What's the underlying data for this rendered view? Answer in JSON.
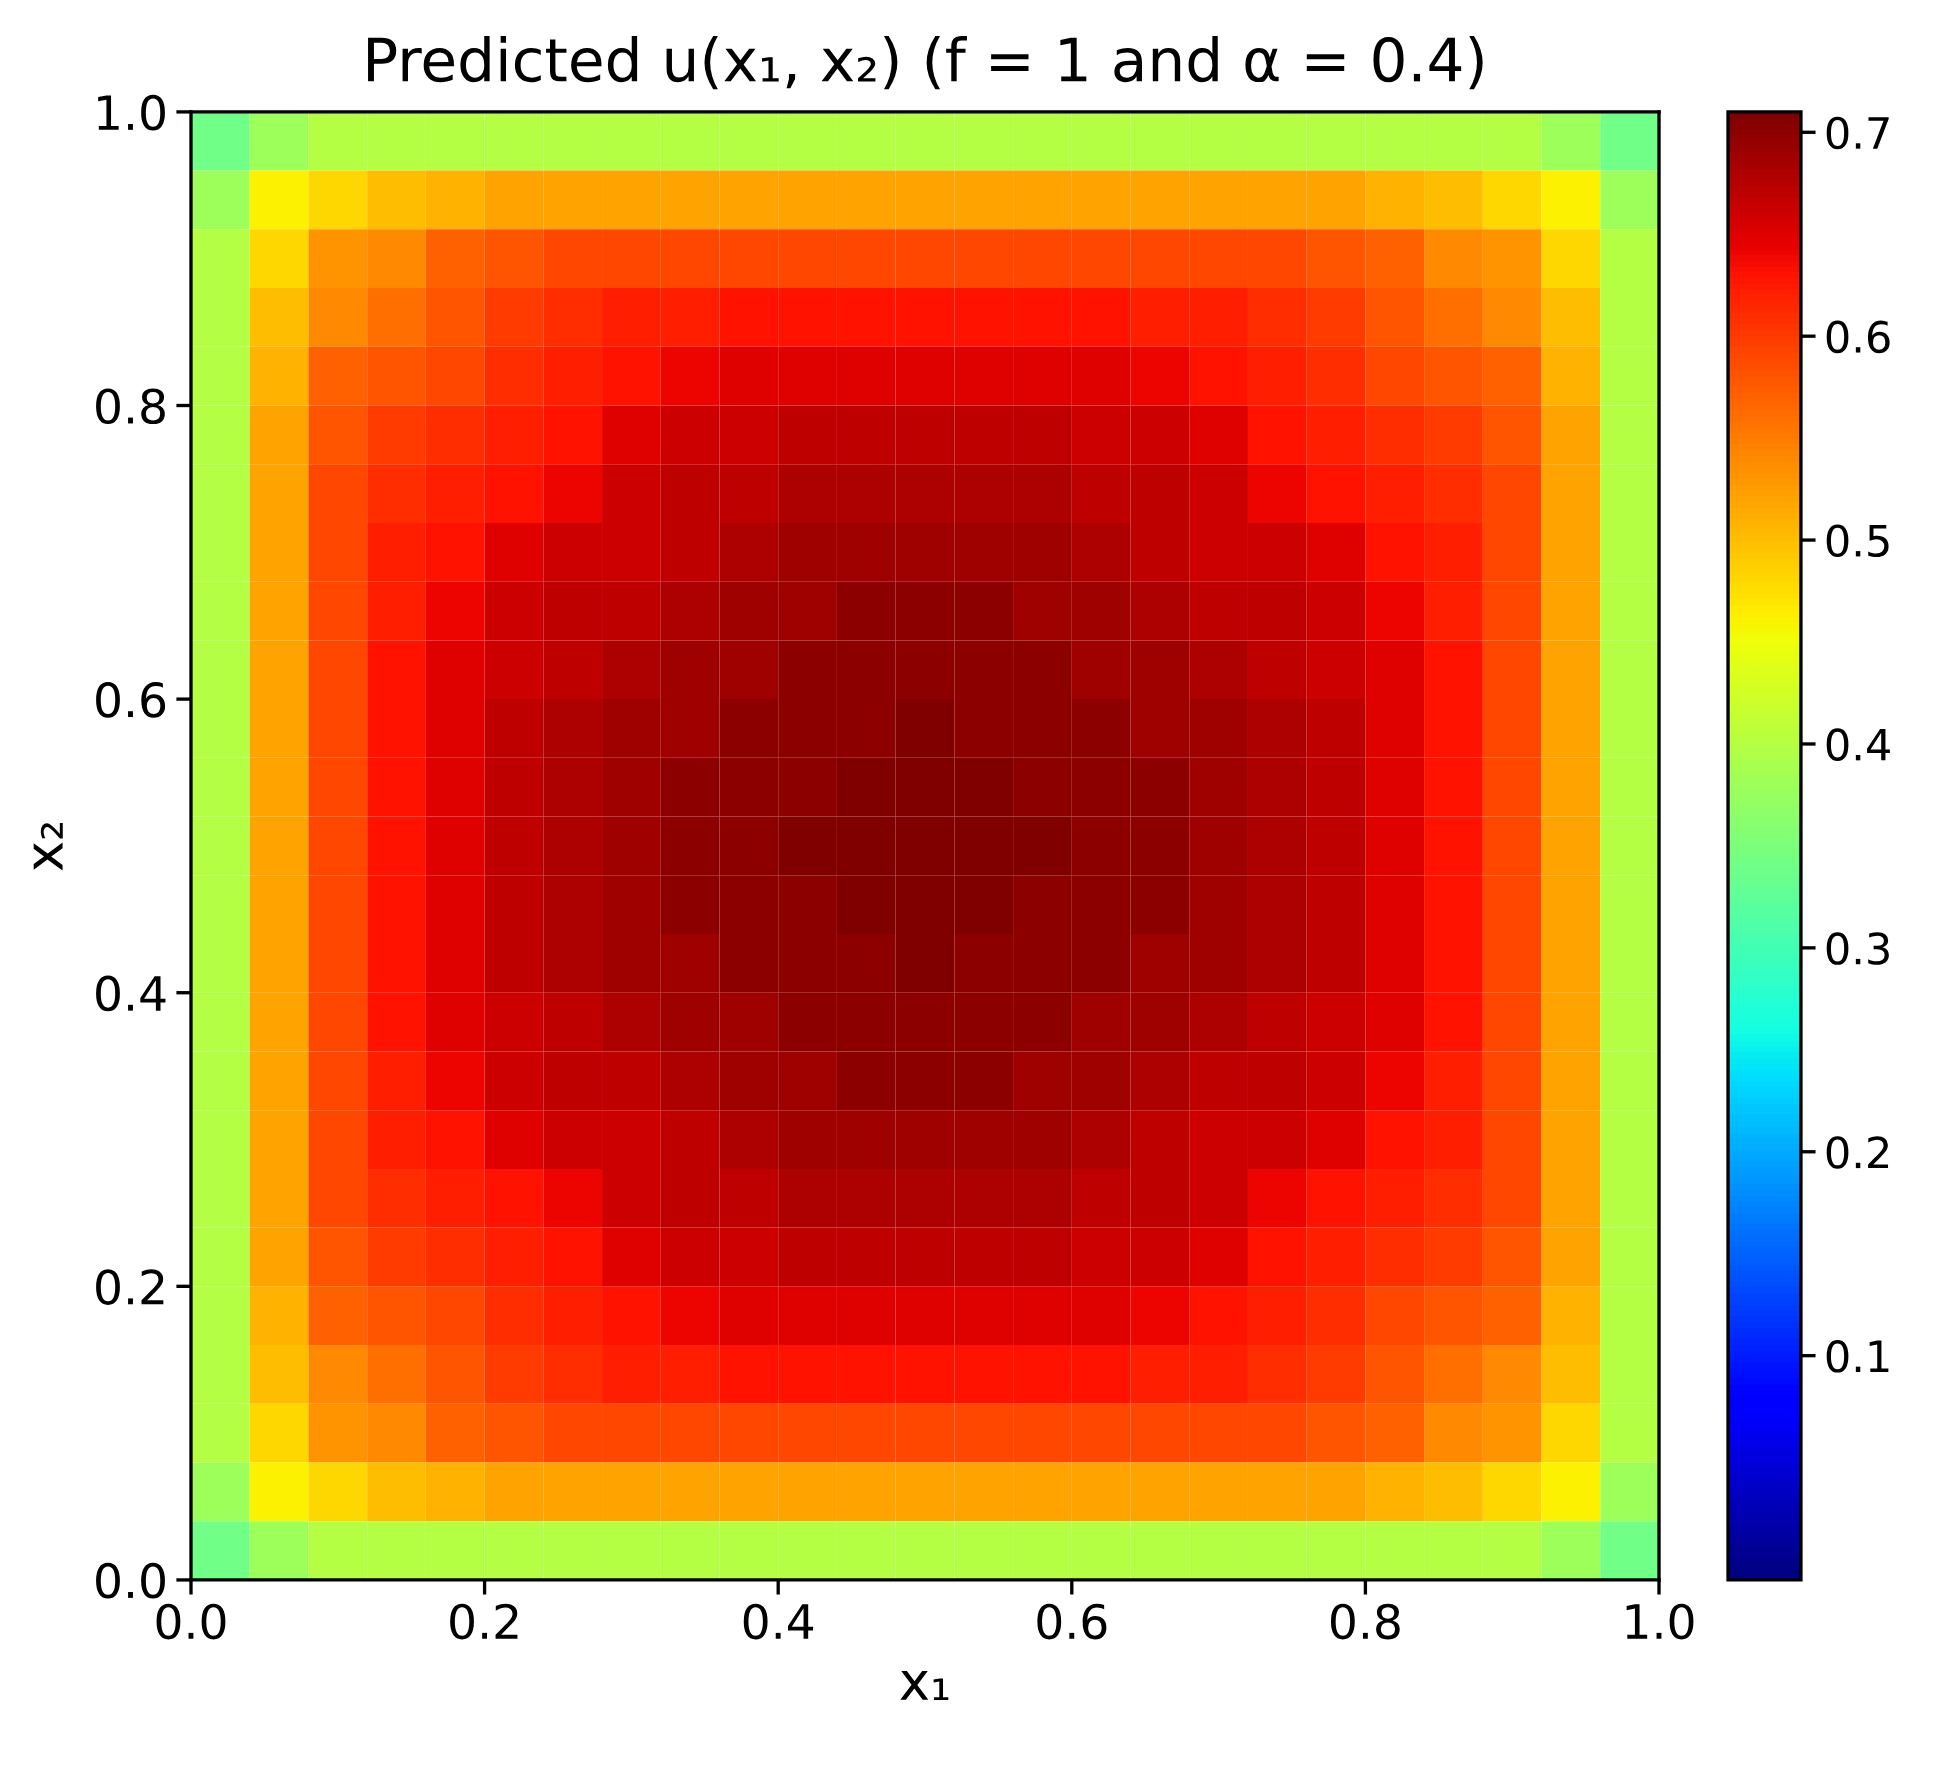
{
  "chart_data": {
    "type": "heatmap",
    "title": "Predicted u(x₁, x₂) (f = 1 and α = 0.4)",
    "xlabel": "x₁",
    "ylabel": "x₂",
    "x": [
      0.02,
      0.06,
      0.1,
      0.14,
      0.18,
      0.22,
      0.26,
      0.3,
      0.34,
      0.38,
      0.42,
      0.46,
      0.5,
      0.54,
      0.58,
      0.62,
      0.66,
      0.7,
      0.74,
      0.78,
      0.82,
      0.86,
      0.9,
      0.94,
      0.98
    ],
    "y": [
      0.98,
      0.94,
      0.9,
      0.86,
      0.82,
      0.78,
      0.74,
      0.7,
      0.66,
      0.62,
      0.58,
      0.54,
      0.5,
      0.46,
      0.42,
      0.38,
      0.34,
      0.3,
      0.26,
      0.22,
      0.18,
      0.14,
      0.1,
      0.06,
      0.02
    ],
    "xlim": [
      0,
      1
    ],
    "ylim": [
      0,
      1
    ],
    "xticks": [
      {
        "value": 0,
        "label": "0.0"
      },
      0.2,
      0.4,
      0.6,
      0.8,
      {
        "value": 1,
        "label": "1.0"
      }
    ],
    "yticks": [
      {
        "value": 0,
        "label": "0.0"
      },
      0.2,
      0.4,
      0.6,
      0.8,
      {
        "value": 1,
        "label": "1.0"
      }
    ],
    "clim": [
      -0.01,
      0.71
    ],
    "cticks": [
      0.1,
      0.2,
      0.3,
      0.4,
      0.5,
      0.6,
      0.7
    ],
    "cells": [
      [
        0.34,
        0.38,
        0.4,
        0.4,
        0.4,
        0.4,
        0.4,
        0.4,
        0.4,
        0.4,
        0.4,
        0.4,
        0.4,
        0.4,
        0.4,
        0.4,
        0.4,
        0.4,
        0.4,
        0.4,
        0.4,
        0.4,
        0.4,
        0.38,
        0.34
      ],
      [
        0.38,
        0.46,
        0.48,
        0.5,
        0.51,
        0.52,
        0.52,
        0.52,
        0.52,
        0.52,
        0.52,
        0.52,
        0.52,
        0.52,
        0.52,
        0.52,
        0.52,
        0.52,
        0.52,
        0.52,
        0.51,
        0.5,
        0.48,
        0.46,
        0.38
      ],
      [
        0.4,
        0.48,
        0.53,
        0.54,
        0.57,
        0.58,
        0.59,
        0.59,
        0.59,
        0.59,
        0.59,
        0.59,
        0.59,
        0.59,
        0.59,
        0.59,
        0.59,
        0.59,
        0.59,
        0.58,
        0.57,
        0.54,
        0.53,
        0.48,
        0.4
      ],
      [
        0.4,
        0.5,
        0.54,
        0.56,
        0.58,
        0.6,
        0.61,
        0.62,
        0.62,
        0.63,
        0.63,
        0.63,
        0.63,
        0.63,
        0.63,
        0.63,
        0.62,
        0.62,
        0.61,
        0.6,
        0.58,
        0.56,
        0.54,
        0.5,
        0.4
      ],
      [
        0.4,
        0.51,
        0.57,
        0.58,
        0.59,
        0.61,
        0.62,
        0.63,
        0.64,
        0.65,
        0.65,
        0.65,
        0.65,
        0.65,
        0.65,
        0.65,
        0.64,
        0.63,
        0.62,
        0.61,
        0.59,
        0.58,
        0.57,
        0.51,
        0.4
      ],
      [
        0.4,
        0.52,
        0.58,
        0.6,
        0.61,
        0.62,
        0.63,
        0.65,
        0.66,
        0.66,
        0.67,
        0.67,
        0.67,
        0.67,
        0.67,
        0.66,
        0.66,
        0.65,
        0.63,
        0.62,
        0.61,
        0.6,
        0.58,
        0.52,
        0.4
      ],
      [
        0.4,
        0.52,
        0.59,
        0.61,
        0.62,
        0.63,
        0.64,
        0.66,
        0.67,
        0.67,
        0.68,
        0.68,
        0.68,
        0.68,
        0.68,
        0.67,
        0.67,
        0.66,
        0.64,
        0.63,
        0.62,
        0.61,
        0.59,
        0.52,
        0.4
      ],
      [
        0.4,
        0.52,
        0.59,
        0.62,
        0.63,
        0.65,
        0.66,
        0.66,
        0.67,
        0.68,
        0.69,
        0.69,
        0.69,
        0.69,
        0.69,
        0.68,
        0.67,
        0.66,
        0.66,
        0.65,
        0.63,
        0.62,
        0.59,
        0.52,
        0.4
      ],
      [
        0.4,
        0.52,
        0.59,
        0.62,
        0.64,
        0.66,
        0.67,
        0.67,
        0.68,
        0.69,
        0.69,
        0.7,
        0.7,
        0.7,
        0.69,
        0.69,
        0.68,
        0.67,
        0.67,
        0.66,
        0.64,
        0.62,
        0.59,
        0.52,
        0.4
      ],
      [
        0.4,
        0.52,
        0.59,
        0.63,
        0.65,
        0.66,
        0.67,
        0.68,
        0.69,
        0.69,
        0.7,
        0.7,
        0.7,
        0.7,
        0.7,
        0.69,
        0.69,
        0.68,
        0.67,
        0.66,
        0.65,
        0.63,
        0.59,
        0.52,
        0.4
      ],
      [
        0.4,
        0.52,
        0.59,
        0.63,
        0.65,
        0.67,
        0.68,
        0.69,
        0.69,
        0.7,
        0.7,
        0.7,
        0.71,
        0.7,
        0.7,
        0.7,
        0.69,
        0.69,
        0.68,
        0.67,
        0.65,
        0.63,
        0.59,
        0.52,
        0.4
      ],
      [
        0.4,
        0.52,
        0.59,
        0.63,
        0.65,
        0.67,
        0.68,
        0.69,
        0.7,
        0.7,
        0.7,
        0.71,
        0.71,
        0.71,
        0.7,
        0.7,
        0.7,
        0.69,
        0.68,
        0.67,
        0.65,
        0.63,
        0.59,
        0.52,
        0.4
      ],
      [
        0.4,
        0.52,
        0.59,
        0.63,
        0.65,
        0.67,
        0.68,
        0.69,
        0.7,
        0.7,
        0.71,
        0.71,
        0.71,
        0.71,
        0.71,
        0.7,
        0.7,
        0.69,
        0.68,
        0.67,
        0.65,
        0.63,
        0.59,
        0.52,
        0.4
      ],
      [
        0.4,
        0.52,
        0.59,
        0.63,
        0.65,
        0.67,
        0.68,
        0.69,
        0.7,
        0.7,
        0.7,
        0.71,
        0.71,
        0.71,
        0.7,
        0.7,
        0.7,
        0.69,
        0.68,
        0.67,
        0.65,
        0.63,
        0.59,
        0.52,
        0.4
      ],
      [
        0.4,
        0.52,
        0.59,
        0.63,
        0.65,
        0.67,
        0.68,
        0.69,
        0.69,
        0.7,
        0.7,
        0.7,
        0.71,
        0.7,
        0.7,
        0.7,
        0.69,
        0.69,
        0.68,
        0.67,
        0.65,
        0.63,
        0.59,
        0.52,
        0.4
      ],
      [
        0.4,
        0.52,
        0.59,
        0.63,
        0.65,
        0.66,
        0.67,
        0.68,
        0.69,
        0.69,
        0.7,
        0.7,
        0.7,
        0.7,
        0.7,
        0.69,
        0.69,
        0.68,
        0.67,
        0.66,
        0.65,
        0.63,
        0.59,
        0.52,
        0.4
      ],
      [
        0.4,
        0.52,
        0.59,
        0.62,
        0.64,
        0.66,
        0.67,
        0.67,
        0.68,
        0.69,
        0.69,
        0.7,
        0.7,
        0.7,
        0.69,
        0.69,
        0.68,
        0.67,
        0.67,
        0.66,
        0.64,
        0.62,
        0.59,
        0.52,
        0.4
      ],
      [
        0.4,
        0.52,
        0.59,
        0.62,
        0.63,
        0.65,
        0.66,
        0.66,
        0.67,
        0.68,
        0.69,
        0.69,
        0.69,
        0.69,
        0.69,
        0.68,
        0.67,
        0.66,
        0.66,
        0.65,
        0.63,
        0.62,
        0.59,
        0.52,
        0.4
      ],
      [
        0.4,
        0.52,
        0.59,
        0.61,
        0.62,
        0.63,
        0.64,
        0.66,
        0.67,
        0.67,
        0.68,
        0.68,
        0.68,
        0.68,
        0.68,
        0.67,
        0.67,
        0.66,
        0.64,
        0.63,
        0.62,
        0.61,
        0.59,
        0.52,
        0.4
      ],
      [
        0.4,
        0.52,
        0.58,
        0.6,
        0.61,
        0.62,
        0.63,
        0.65,
        0.66,
        0.66,
        0.67,
        0.67,
        0.67,
        0.67,
        0.67,
        0.66,
        0.66,
        0.65,
        0.63,
        0.62,
        0.61,
        0.6,
        0.58,
        0.52,
        0.4
      ],
      [
        0.4,
        0.51,
        0.57,
        0.58,
        0.59,
        0.61,
        0.62,
        0.63,
        0.64,
        0.65,
        0.65,
        0.65,
        0.65,
        0.65,
        0.65,
        0.65,
        0.64,
        0.63,
        0.62,
        0.61,
        0.59,
        0.58,
        0.57,
        0.51,
        0.4
      ],
      [
        0.4,
        0.5,
        0.54,
        0.56,
        0.58,
        0.6,
        0.61,
        0.62,
        0.62,
        0.63,
        0.63,
        0.63,
        0.63,
        0.63,
        0.63,
        0.63,
        0.62,
        0.62,
        0.61,
        0.6,
        0.58,
        0.56,
        0.54,
        0.5,
        0.4
      ],
      [
        0.4,
        0.48,
        0.53,
        0.54,
        0.57,
        0.58,
        0.59,
        0.59,
        0.59,
        0.59,
        0.59,
        0.59,
        0.59,
        0.59,
        0.59,
        0.59,
        0.59,
        0.59,
        0.59,
        0.58,
        0.57,
        0.54,
        0.53,
        0.48,
        0.4
      ],
      [
        0.38,
        0.46,
        0.48,
        0.5,
        0.51,
        0.52,
        0.52,
        0.52,
        0.52,
        0.52,
        0.52,
        0.52,
        0.52,
        0.52,
        0.52,
        0.52,
        0.52,
        0.52,
        0.52,
        0.52,
        0.51,
        0.5,
        0.48,
        0.46,
        0.38
      ],
      [
        0.34,
        0.38,
        0.4,
        0.4,
        0.4,
        0.4,
        0.4,
        0.4,
        0.4,
        0.4,
        0.4,
        0.4,
        0.4,
        0.4,
        0.4,
        0.4,
        0.4,
        0.4,
        0.4,
        0.4,
        0.4,
        0.4,
        0.4,
        0.38,
        0.34
      ]
    ]
  }
}
